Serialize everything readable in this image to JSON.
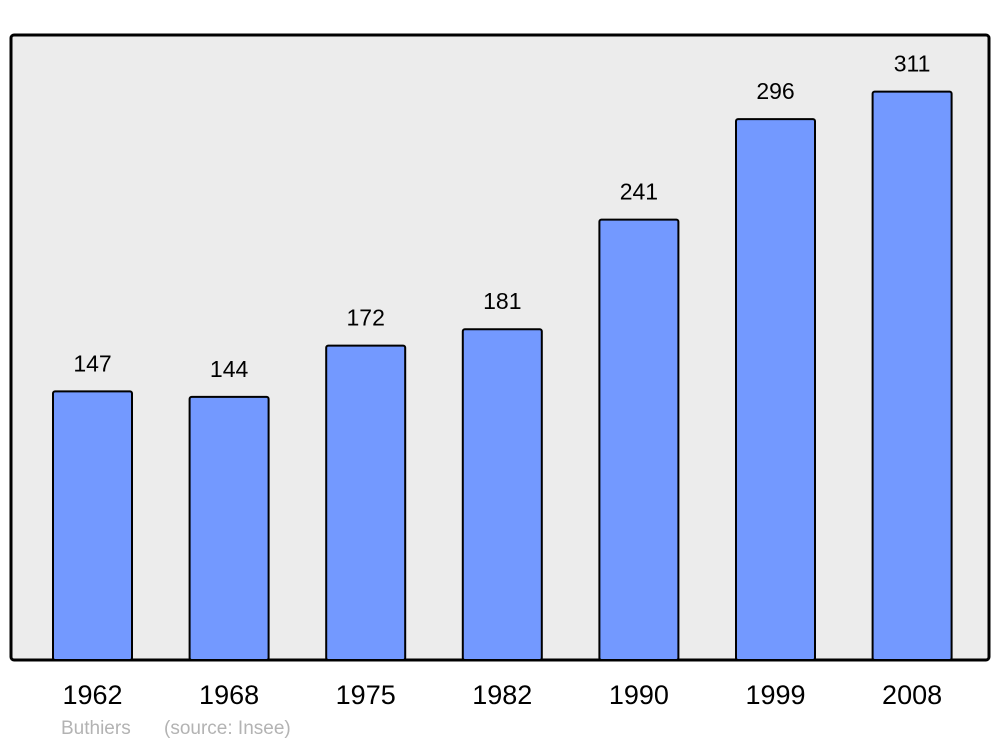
{
  "chart_data": {
    "type": "bar",
    "categories": [
      "1962",
      "1968",
      "1975",
      "1982",
      "1990",
      "1999",
      "2008"
    ],
    "values": [
      147,
      144,
      172,
      181,
      241,
      296,
      311
    ],
    "data_labels": [
      "147",
      "144",
      "172",
      "181",
      "241",
      "296",
      "311"
    ],
    "title": "",
    "xlabel": "",
    "ylabel": "",
    "ylim": [
      0,
      342
    ],
    "grid": false,
    "colors": {
      "bar": "#7399ff",
      "plot_background": "#ececec",
      "border": "#000000",
      "footer_text": "#b3b3b3"
    }
  },
  "footer": {
    "place": "Buthiers",
    "source": "(source: Insee)"
  }
}
